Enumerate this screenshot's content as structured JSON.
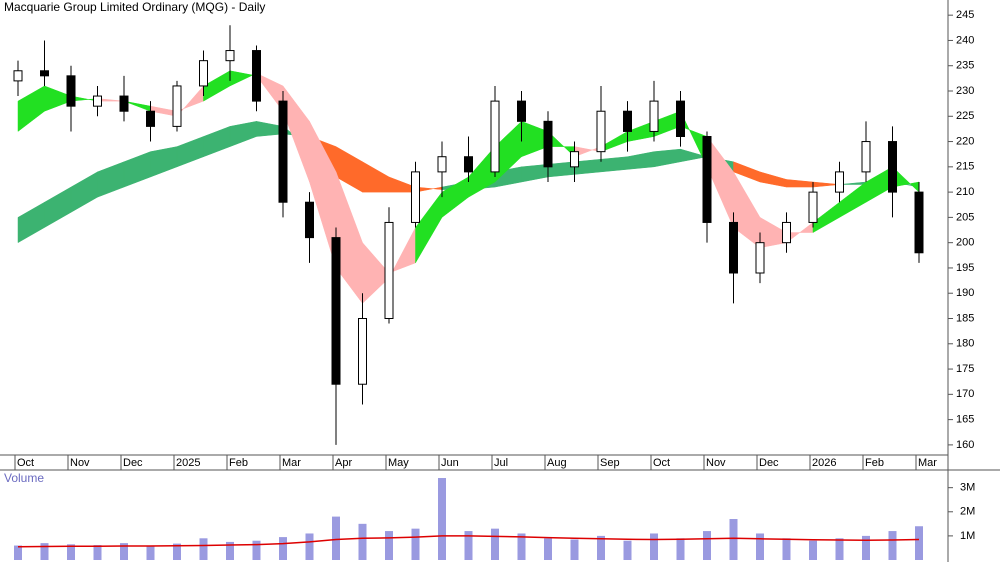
{
  "chart_data": [
    {
      "type": "candlestick",
      "title": "Macquarie Group Limited Ordinary (MQG) - Daily",
      "categories": [
        "Oct",
        null,
        "Nov",
        null,
        "Dec",
        null,
        "2025",
        null,
        "Feb",
        null,
        "Mar",
        null,
        "Apr",
        null,
        "May",
        null,
        "Jun",
        null,
        "Jul",
        null,
        "Aug",
        null,
        "Sep",
        null,
        "Oct",
        null,
        "Nov",
        null,
        "Dec",
        null,
        "2026",
        null,
        "Feb",
        null,
        "Mar"
      ],
      "open": [
        232,
        234,
        233,
        227,
        229,
        226,
        223,
        231,
        236,
        238,
        228,
        208,
        201,
        172,
        185,
        204,
        214,
        217,
        214,
        228,
        224,
        215,
        218,
        226,
        222,
        228,
        221,
        204,
        194,
        200,
        204,
        210,
        214,
        220,
        210
      ],
      "high": [
        236,
        240,
        235,
        231,
        233,
        228,
        232,
        238,
        243,
        239,
        230,
        210,
        203,
        190,
        207,
        216,
        220,
        221,
        231,
        230,
        226,
        220,
        231,
        228,
        232,
        230,
        222,
        206,
        202,
        206,
        212,
        216,
        224,
        223,
        212
      ],
      "low": [
        229,
        231,
        222,
        225,
        224,
        220,
        222,
        229,
        232,
        226,
        205,
        196,
        160,
        168,
        184,
        203,
        209,
        212,
        213,
        220,
        212,
        212,
        216,
        218,
        220,
        219,
        200,
        188,
        192,
        198,
        203,
        208,
        212,
        205,
        196
      ],
      "close": [
        234,
        233,
        227,
        229,
        226,
        223,
        231,
        236,
        238,
        228,
        208,
        201,
        172,
        185,
        204,
        214,
        217,
        214,
        228,
        224,
        215,
        218,
        226,
        222,
        228,
        221,
        204,
        194,
        200,
        204,
        210,
        214,
        220,
        210,
        198
      ],
      "up_color": "#ffffff",
      "down_color": "#000000",
      "bands": [
        {
          "fast": [
            205,
            208,
            211,
            214,
            216,
            218,
            219,
            221,
            223,
            224,
            223,
            219,
            213,
            210,
            210,
            210,
            211,
            212,
            214,
            215,
            215.5,
            216,
            216.5,
            217,
            218,
            218.5,
            217,
            214,
            212,
            211,
            211,
            211.5,
            212,
            212,
            211
          ],
          "slow": [
            200,
            203,
            206,
            209,
            211,
            213,
            215,
            217,
            219,
            221,
            221.5,
            221,
            219,
            216,
            213,
            211,
            210.5,
            210.5,
            211,
            212,
            213,
            213.5,
            214,
            214.5,
            215,
            216,
            217,
            216,
            214,
            212.5,
            212,
            211.5,
            211.5,
            211.5,
            211.5
          ],
          "up_color": "#3cb371",
          "down_color": "#ff6a2a"
        },
        {
          "fast": [
            228,
            231,
            229,
            228,
            228,
            226,
            225,
            231,
            234,
            233,
            226,
            212,
            195,
            188,
            193,
            203,
            210,
            213,
            219,
            224,
            222,
            217,
            219,
            222,
            224,
            226,
            215,
            203,
            199,
            200,
            204,
            208,
            212,
            215,
            210
          ],
          "slow": [
            222,
            226,
            228,
            228.5,
            228,
            227,
            226,
            228,
            231,
            233.5,
            231,
            224,
            214,
            200,
            194,
            196,
            205,
            209,
            212,
            217,
            219,
            219,
            218,
            220,
            221,
            223,
            221,
            214,
            205,
            202,
            202,
            205,
            208,
            211,
            212
          ],
          "up_color": "#22e022",
          "down_color": "#ffb3b3"
        }
      ],
      "ylim": [
        158,
        248
      ],
      "yticks": [
        160,
        165,
        170,
        175,
        180,
        185,
        190,
        195,
        200,
        205,
        210,
        215,
        220,
        225,
        230,
        235,
        240,
        245
      ]
    },
    {
      "type": "bar",
      "title": "Volume",
      "values": [
        600000,
        700000,
        650000,
        620000,
        700000,
        560000,
        680000,
        900000,
        750000,
        800000,
        950000,
        1100000,
        1800000,
        1500000,
        1200000,
        1300000,
        3400000,
        1200000,
        1300000,
        1100000,
        900000,
        850000,
        1000000,
        800000,
        1100000,
        900000,
        1200000,
        1700000,
        1100000,
        900000,
        800000,
        900000,
        1000000,
        1200000,
        1400000
      ],
      "color": "#9a9ae0",
      "average": {
        "color": "#dd0000",
        "values": [
          550000,
          560000,
          570000,
          570000,
          580000,
          580000,
          590000,
          600000,
          620000,
          640000,
          680000,
          750000,
          850000,
          900000,
          920000,
          950000,
          1000000,
          1000000,
          980000,
          960000,
          930000,
          900000,
          880000,
          860000,
          850000,
          860000,
          880000,
          900000,
          880000,
          860000,
          840000,
          830000,
          820000,
          830000,
          850000
        ]
      },
      "ylim": [
        0,
        3650000
      ],
      "yticks": [
        {
          "value": 1000000,
          "label": "1M"
        },
        {
          "value": 2000000,
          "label": "2M"
        },
        {
          "value": 3000000,
          "label": "3M"
        }
      ]
    }
  ]
}
